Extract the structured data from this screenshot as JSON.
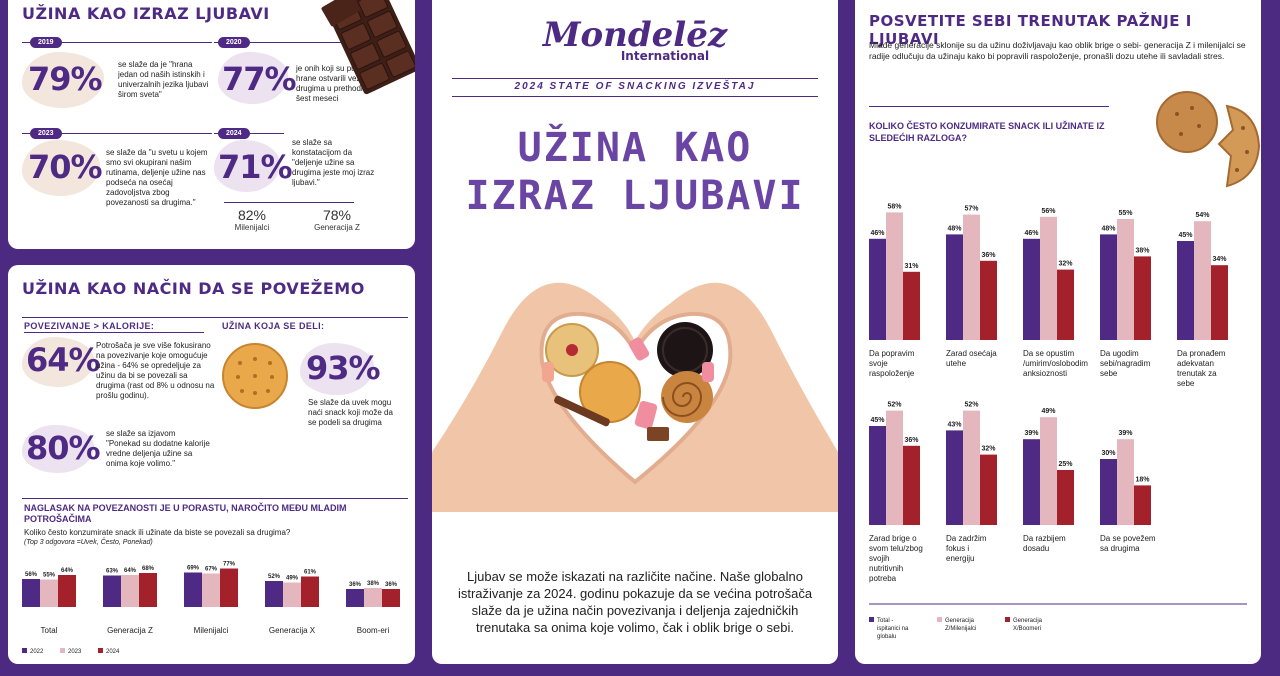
{
  "panel1": {
    "title": "UŽINA KAO IZRAZ LJUBAVI",
    "stats": [
      {
        "year": "2019",
        "pct": "79%",
        "text": "se slaže da je \"hrana jedan od naših istinskih i univerzalnih jezika ljubavi širom sveta\""
      },
      {
        "year": "2020",
        "pct": "77%",
        "text": "je onih koji su putem hrane ostvarili vezu sa drugima u prethodnih šest meseci"
      },
      {
        "year": "2023",
        "pct": "70%",
        "text": "se slaže da \"u svetu u kojem smo svi okupirani našim rutinama, deljenje užine nas podseća na osećaj zadovoljstva zbog povezanosti sa drugima.\""
      },
      {
        "year": "2024",
        "pct": "71%",
        "text": "se slaže sa konstatacijom da \"deljenje užine sa drugima jeste moj izraz ljubavi.\""
      }
    ],
    "sub": [
      {
        "pct": "82%",
        "label": "Milenijalci"
      },
      {
        "pct": "78%",
        "label": "Generacija Z"
      }
    ]
  },
  "panel2": {
    "title": "UŽINA KAO NAČIN DA SE POVEŽEMO",
    "left_heading": "POVEZIVANJE > KALORIJE:",
    "right_heading": "UŽINA KOJA SE DELI:",
    "stat1_pct": "64%",
    "stat1_text": "Potrošača je sve više fokusirano na povezivanje koje omogućuje užina - 64% se opredeljuje za užinu da bi se povezali sa drugima (rast od 8% u odnosu na prošlu godinu).",
    "stat2_pct": "93%",
    "stat2_text": "Se slaže da uvek mogu naći snack koji može da se podeli sa drugima",
    "stat3_pct": "80%",
    "stat3_text": "se slaže sa izjavom \"Ponekad su dodatne kalorije vredne deljenja užine sa onima koje volimo.\"",
    "chart_heading": "NAGLASAK NA POVEZANOSTI JE U PORASTU, NAROČITO MEĐU MLADIM POTROŠAČIMA",
    "chart_question": "Koliko često konzumirate snack ili užinate da biste se povezali sa drugima?",
    "chart_note": "(Top 3 odgovora =Uvek, Često, Ponekad)"
  },
  "center": {
    "brand": "Mondelēz",
    "brand_sub": "International",
    "report": "2024 STATE OF SNACKING IZVEŠTAJ",
    "title_line1": "UŽINA KAO",
    "title_line2": "IZRAZ LJUBAVI",
    "body": "Ljubav se može iskazati na različite načine. Naše globalno istraživanje za 2024. godinu pokazuje da se većina potrošača slaže da je užina način povezivanja i deljenja zajedničkih trenutaka sa onima koje volimo, čak i oblik brige o sebi."
  },
  "panel3": {
    "title": "POSVETITE SEBI TRENUTAK PAŽNJE I LJUBAVI",
    "intro": "Mlađe generacije sklonije su da užinu doživljavaju kao oblik brige o sebi- generacija Z i milenijalci se radije odlučuju da užinaju kako bi popravili raspoloženje, pronašli dozu utehe ili savladali stres.",
    "question": "KOLIKO ČESTO KONZUMIRATE SNACK ILI UŽINATE IZ SLEDEĆIH RAZLOGA?"
  },
  "colors": {
    "c1": "#4e2a84",
    "c2": "#e3b7bd",
    "c3": "#a3212a"
  },
  "chart_data": [
    {
      "type": "bar",
      "categories": [
        "Total",
        "Generacija Z",
        "Milenijalci",
        "Generacija  X",
        "Boom-eri"
      ],
      "series": [
        {
          "name": "2022",
          "values": [
            56,
            63,
            69,
            52,
            36
          ]
        },
        {
          "name": "2023",
          "values": [
            55,
            64,
            67,
            49,
            38
          ]
        },
        {
          "name": "2024",
          "values": [
            64,
            68,
            77,
            61,
            36
          ]
        }
      ]
    },
    {
      "type": "bar",
      "categories": [
        "Da popravim svoje raspoloženje",
        "Zarad osećaja utehe",
        "Da se opustim /umirim/oslobodim anksioznosti",
        "Da ugodim sebi/nagradim sebe",
        "Da pronađem adekvatan trenutak za sebe",
        "Zarad brige o svom telu/zbog svojih nutritivnih potreba",
        "Da zadržim fokus i energiju",
        "Da razbijem dosadu",
        "Da se povežem sa drugima"
      ],
      "series": [
        {
          "name": "Total - ispitanici na globalu",
          "values": [
            46,
            48,
            46,
            48,
            45,
            45,
            43,
            39,
            30
          ]
        },
        {
          "name": "Generacija Z/Milenijalci",
          "values": [
            58,
            57,
            56,
            55,
            54,
            52,
            52,
            49,
            39
          ]
        },
        {
          "name": "Generacija X/Boomeri",
          "values": [
            31,
            36,
            32,
            38,
            34,
            36,
            32,
            25,
            18
          ]
        }
      ]
    }
  ]
}
